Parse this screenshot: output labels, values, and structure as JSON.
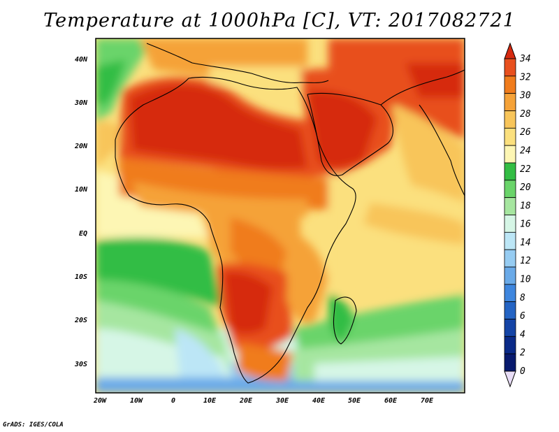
{
  "title": "Temperature at 1000hPa [C], VT: 2017082721",
  "credit": "GrADS: IGES/COLA",
  "map": {
    "lon_range": [
      -23,
      80
    ],
    "lat_range": [
      -37,
      45
    ],
    "x_ticks": [
      "20W",
      "10W",
      "0",
      "10E",
      "20E",
      "30E",
      "40E",
      "50E",
      "60E",
      "70E"
    ],
    "y_ticks": [
      "40N",
      "30N",
      "20N",
      "10N",
      "EQ",
      "10S",
      "20S",
      "30S"
    ]
  },
  "colorbar": {
    "levels": [
      "34",
      "32",
      "30",
      "28",
      "26",
      "24",
      "22",
      "20",
      "18",
      "16",
      "14",
      "12",
      "10",
      "8",
      "6",
      "4",
      "2",
      "0"
    ],
    "colors": [
      "#d62a10",
      "#e8501e",
      "#f07c1c",
      "#f5a238",
      "#f8c55a",
      "#fbe07e",
      "#fdf6b4",
      "#33bd44",
      "#6ad46a",
      "#a6e6a0",
      "#d6f6e6",
      "#bce6f6",
      "#96ccf2",
      "#6aaae8",
      "#3e86de",
      "#2464c4",
      "#1444a6",
      "#0a2a88",
      "#081a6e"
    ],
    "above_color": "#d62a10",
    "below_color": "#e8ddf6"
  }
}
